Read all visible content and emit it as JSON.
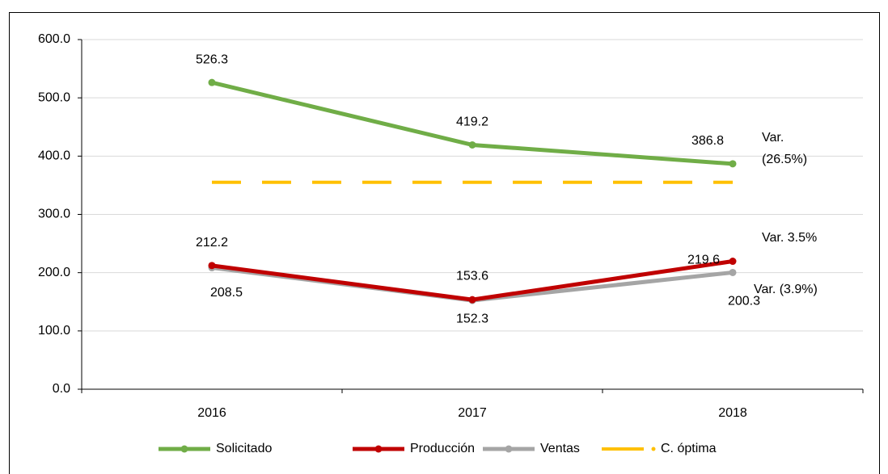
{
  "chart_data": {
    "type": "line",
    "categories": [
      "2016",
      "2017",
      "2018"
    ],
    "series": [
      {
        "name": "Solicitado",
        "color": "#70ad47",
        "values": [
          526.3,
          419.2,
          386.8
        ],
        "markers": true,
        "labels": true
      },
      {
        "name": "Producción",
        "color": "#c00000",
        "values": [
          212.2,
          153.6,
          219.6
        ],
        "markers": true,
        "labels": true
      },
      {
        "name": "Ventas",
        "color": "#a5a5a5",
        "values": [
          208.5,
          152.3,
          200.3
        ],
        "markers": true,
        "labels": true
      },
      {
        "name": "C. óptima",
        "color": "#ffc000",
        "values": [
          355,
          355,
          355
        ],
        "markers": false,
        "labels": false,
        "line_style": "dashed"
      }
    ],
    "ylim": [
      0,
      600
    ],
    "yticks": [
      {
        "value": 0,
        "label": "0.0"
      },
      {
        "value": 100,
        "label": "100.0"
      },
      {
        "value": 200,
        "label": "200.0"
      },
      {
        "value": 300,
        "label": "300.0"
      },
      {
        "value": 400,
        "label": "400.0"
      },
      {
        "value": 500,
        "label": "500.0"
      },
      {
        "value": 600,
        "label": "600.0"
      }
    ],
    "grid": true,
    "legend": "bottom",
    "annotations": [
      [
        "Var.",
        "(26.5%)"
      ],
      [
        "Var. 3.5%"
      ],
      [
        "Var. (3.9%)"
      ]
    ]
  }
}
